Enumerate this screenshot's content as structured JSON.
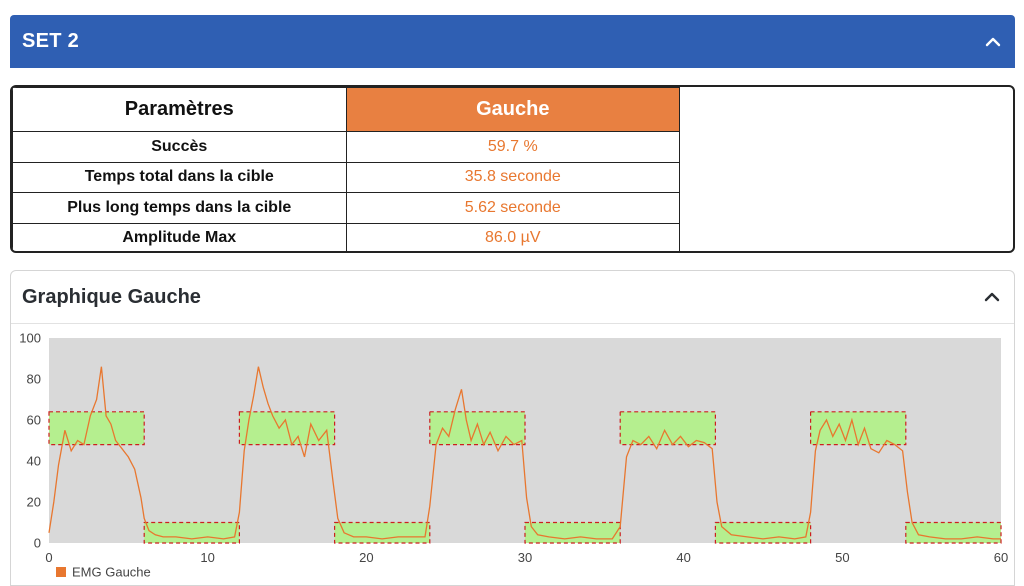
{
  "set_panel": {
    "title": "SET 2"
  },
  "params_table": {
    "headers": {
      "param": "Paramètres",
      "side": "Gauche"
    },
    "rows": [
      {
        "label": "Succès",
        "value": "59.7 %"
      },
      {
        "label": "Temps total dans la cible",
        "value": "35.8 seconde"
      },
      {
        "label": "Plus long temps dans la cible",
        "value": "5.62 seconde"
      },
      {
        "label": "Amplitude Max",
        "value": "86.0 µV"
      }
    ]
  },
  "chart_panel": {
    "title": "Graphique Gauche"
  },
  "icons": {
    "collapse": "chevron-up-icon"
  },
  "colors": {
    "header_blue": "#2f5fb3",
    "accent_orange": "#e88041",
    "value_orange": "#e8772f",
    "emg_line": "#e8772f",
    "target_zone": "#b5ef8f",
    "plot_bg": "#d9d9d9",
    "target_border": "#cc1f1f"
  },
  "chart_data": {
    "type": "line",
    "xlim": [
      0,
      60
    ],
    "ylim": [
      0,
      100
    ],
    "x_ticks": [
      0,
      10,
      20,
      30,
      40,
      50,
      60
    ],
    "y_ticks": [
      0,
      20,
      40,
      60,
      80,
      100
    ],
    "legend": {
      "label": "EMG Gauche",
      "position": "bottom-left"
    },
    "target_zones": [
      {
        "x": [
          0,
          6
        ],
        "y": [
          48,
          64
        ]
      },
      {
        "x": [
          6,
          12
        ],
        "y": [
          0,
          10
        ]
      },
      {
        "x": [
          12,
          18
        ],
        "y": [
          48,
          64
        ]
      },
      {
        "x": [
          18,
          24
        ],
        "y": [
          0,
          10
        ]
      },
      {
        "x": [
          24,
          30
        ],
        "y": [
          48,
          64
        ]
      },
      {
        "x": [
          30,
          36
        ],
        "y": [
          0,
          10
        ]
      },
      {
        "x": [
          36,
          42
        ],
        "y": [
          48,
          64
        ]
      },
      {
        "x": [
          42,
          48
        ],
        "y": [
          0,
          10
        ]
      },
      {
        "x": [
          48,
          54
        ],
        "y": [
          48,
          64
        ]
      },
      {
        "x": [
          54,
          60
        ],
        "y": [
          0,
          10
        ]
      }
    ],
    "series": [
      {
        "name": "EMG Gauche",
        "x": [
          0,
          0.3,
          0.6,
          1,
          1.4,
          1.8,
          2.2,
          2.6,
          3,
          3.3,
          3.6,
          3.9,
          4.2,
          4.6,
          5,
          5.4,
          5.8,
          6,
          6.3,
          6.7,
          7.2,
          8,
          9,
          10,
          11,
          11.7,
          12,
          12.3,
          12.6,
          12.9,
          13.2,
          13.5,
          13.8,
          14.1,
          14.5,
          14.9,
          15.3,
          15.7,
          16.1,
          16.5,
          17,
          17.5,
          17.9,
          18.2,
          18.6,
          19.2,
          20,
          21,
          22,
          23,
          23.7,
          24,
          24.4,
          24.8,
          25.2,
          25.6,
          26,
          26.3,
          26.6,
          27,
          27.4,
          27.8,
          28.3,
          28.8,
          29.3,
          29.8,
          30.1,
          30.4,
          30.8,
          31.5,
          32.5,
          33.5,
          34.5,
          35.5,
          36,
          36.4,
          36.8,
          37.3,
          37.8,
          38.3,
          38.8,
          39.3,
          39.8,
          40.3,
          40.8,
          41.3,
          41.8,
          42.1,
          42.4,
          43,
          44,
          45,
          46,
          47,
          47.7,
          48,
          48.3,
          48.6,
          49,
          49.4,
          49.8,
          50.2,
          50.6,
          51,
          51.4,
          51.8,
          52.3,
          52.8,
          53.3,
          53.8,
          54.1,
          54.4,
          54.8,
          55.5,
          56.5,
          57.5,
          58.5,
          59.5,
          60
        ],
        "y": [
          5,
          20,
          38,
          55,
          45,
          50,
          48,
          62,
          70,
          86,
          62,
          58,
          50,
          46,
          42,
          36,
          22,
          12,
          6,
          4,
          3,
          3,
          2,
          3,
          2,
          3,
          15,
          45,
          60,
          72,
          86,
          76,
          68,
          62,
          56,
          60,
          48,
          52,
          42,
          58,
          50,
          55,
          30,
          12,
          5,
          3,
          3,
          2,
          3,
          3,
          3,
          18,
          48,
          56,
          52,
          65,
          75,
          60,
          50,
          58,
          48,
          54,
          45,
          52,
          48,
          50,
          22,
          8,
          4,
          3,
          2,
          3,
          2,
          2,
          8,
          42,
          50,
          48,
          52,
          46,
          55,
          48,
          52,
          47,
          50,
          49,
          46,
          20,
          8,
          4,
          3,
          2,
          3,
          2,
          3,
          15,
          45,
          55,
          60,
          52,
          58,
          50,
          60,
          48,
          56,
          46,
          44,
          50,
          48,
          45,
          25,
          10,
          4,
          3,
          2,
          2,
          3,
          2,
          2
        ]
      }
    ]
  }
}
